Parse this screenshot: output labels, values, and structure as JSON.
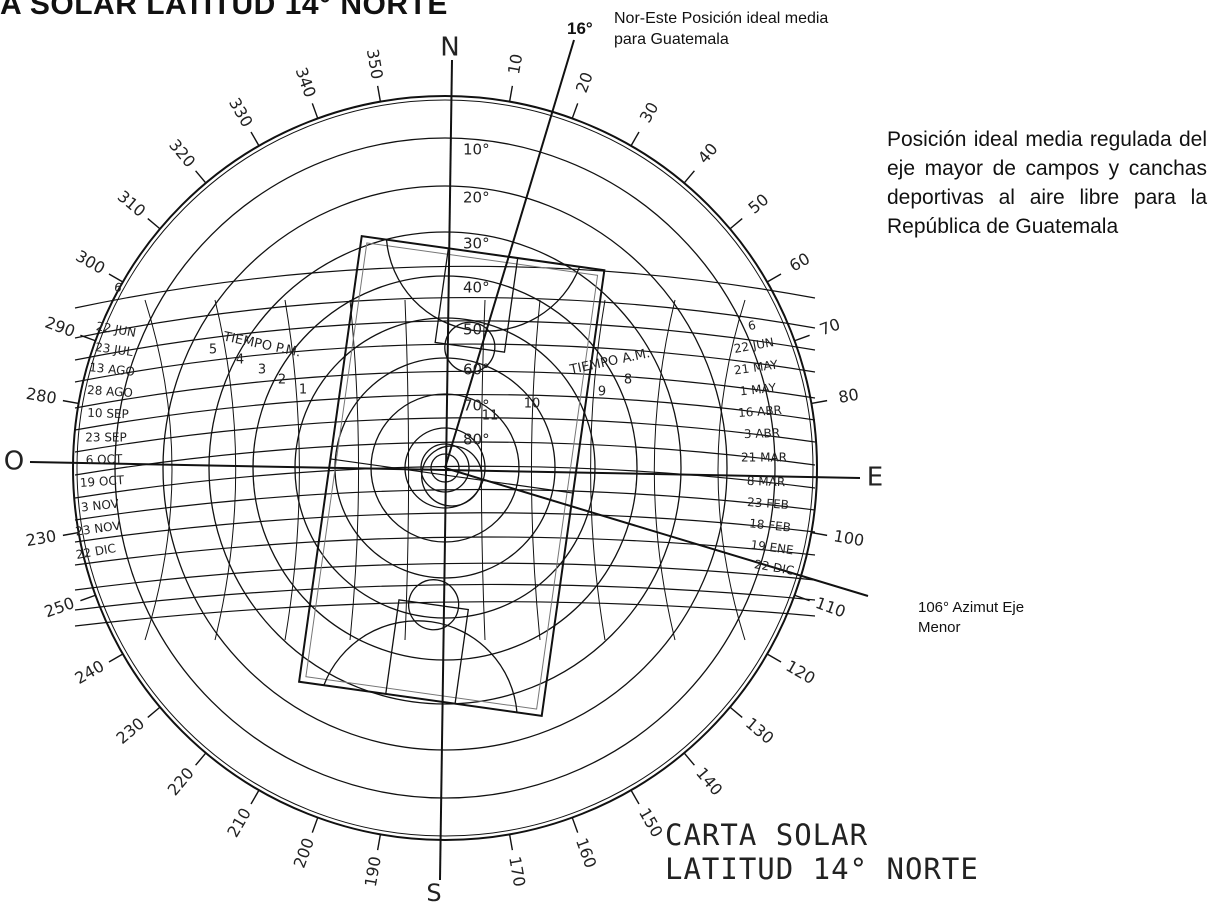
{
  "header_fragment": "A SOLAR LATITUD 14° NORTE",
  "cardinals": {
    "north": "N",
    "south": "S",
    "east": "E",
    "west": "O"
  },
  "azimuth_ticks": [
    "10",
    "20",
    "30",
    "40",
    "50",
    "60",
    "70",
    "80",
    "100",
    "110",
    "120",
    "130",
    "140",
    "150",
    "160",
    "170",
    "190",
    "200",
    "210",
    "220",
    "230",
    "240",
    "250",
    "230",
    "280",
    "290",
    "300",
    "310",
    "320",
    "330",
    "340",
    "350"
  ],
  "altitude_labels": [
    "10°",
    "20°",
    "30°",
    "40°",
    "50°",
    "60°",
    "70°",
    "80°"
  ],
  "dates_left": [
    "6",
    "22 JUN",
    "23 JUL",
    "13 AGO",
    "28 AGO",
    "10 SEP",
    "23 SEP",
    "6 OCT",
    "19 OCT",
    "3 NOV",
    "23 NOV",
    "22 DIC"
  ],
  "dates_right": [
    "6",
    "22 JUN",
    "21 MAY",
    "1 MAY",
    "16 ABR",
    "3 ABR",
    "21 MAR",
    "8 MAR",
    "23 FEB",
    "18 FEB",
    "19 ENE",
    "22 DIC"
  ],
  "time_pm": {
    "title": "TIEMPO P.M.",
    "hours": [
      "5",
      "4",
      "3",
      "2",
      "1"
    ]
  },
  "time_am": {
    "title": "TIEMPO A.M.",
    "hours": [
      "8",
      "9",
      "10",
      "11"
    ]
  },
  "north_axis_label": "16°",
  "north_axis_note": "Nor-Este Posición ideal media para Guatemala",
  "minor_axis_note": "106° Azimut Eje Menor",
  "side_note": "Posición ideal media regulada del eje mayor de campos y canchas deportivas al aire libre para la República de Guatemala",
  "chart_title": "CARTA SOLAR",
  "chart_subtitle": "LATITUD 14° NORTE",
  "colors": {
    "ink": "#111111",
    "court": "#333333",
    "background": "#ffffff"
  }
}
